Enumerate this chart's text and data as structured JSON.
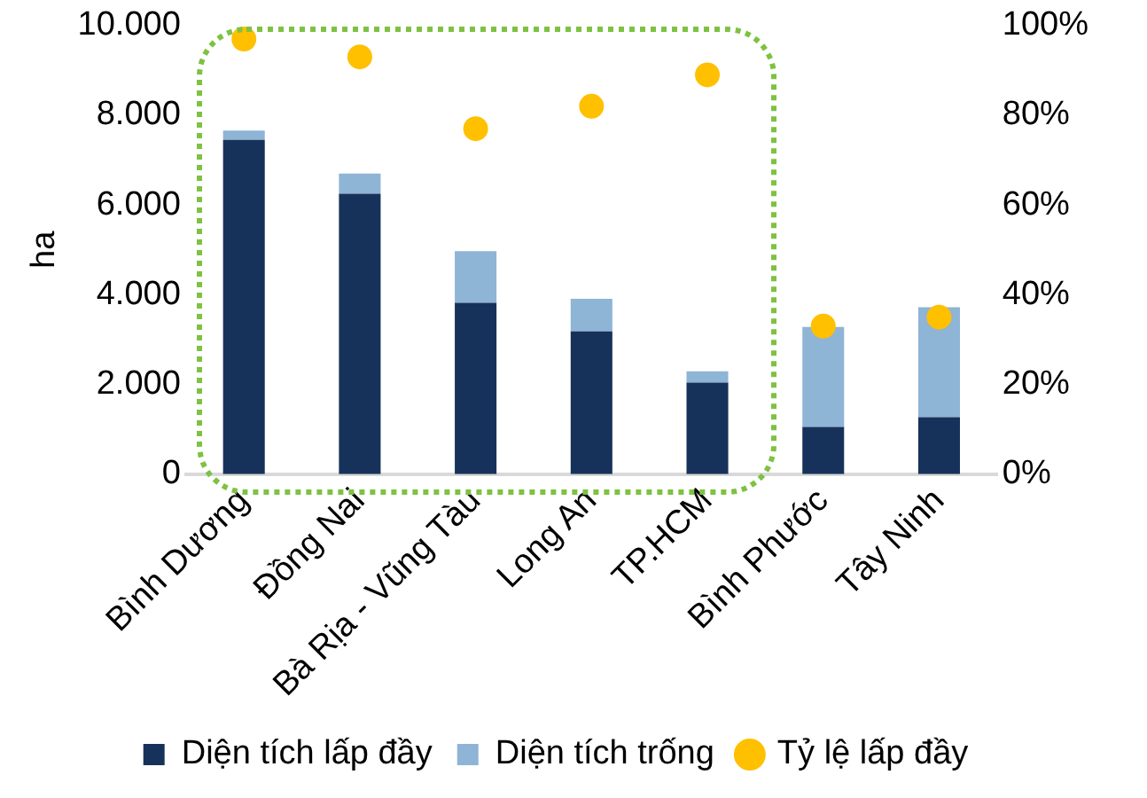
{
  "chart_data": {
    "type": "bar",
    "stacked": true,
    "ylabel": "ha",
    "categories": [
      "Bình Dương",
      "Đồng Nai",
      "Bà Rịa - Vũng Tàu",
      "Long An",
      "TP.HCM",
      "Bình Phước",
      "Tây Ninh"
    ],
    "series": [
      {
        "name": "Diện tích lấp đầy",
        "color": "#17325a",
        "values": [
          7450,
          6250,
          3820,
          3180,
          2040,
          1050,
          1270
        ]
      },
      {
        "name": "Diện tích trống",
        "color": "#8eb4d6",
        "values": [
          210,
          450,
          1150,
          730,
          250,
          2230,
          2450
        ]
      },
      {
        "name": "Tỷ lệ lấp đầy",
        "type": "scatter",
        "axis": "y2",
        "color": "#ffc000",
        "values": [
          97,
          93,
          77,
          82,
          89,
          33,
          35
        ]
      }
    ],
    "ylim": [
      0,
      10000
    ],
    "yticks": [
      {
        "value": 0,
        "label": "0"
      },
      {
        "value": 2000,
        "label": "2.000"
      },
      {
        "value": 4000,
        "label": "4.000"
      },
      {
        "value": 6000,
        "label": "6.000"
      },
      {
        "value": 8000,
        "label": "8.000"
      },
      {
        "value": 10000,
        "label": "10.000"
      }
    ],
    "y2lim": [
      0,
      100
    ],
    "y2ticks": [
      {
        "value": 0,
        "label": "0%"
      },
      {
        "value": 20,
        "label": "20%"
      },
      {
        "value": 40,
        "label": "40%"
      },
      {
        "value": 60,
        "label": "60%"
      },
      {
        "value": 80,
        "label": "80%"
      },
      {
        "value": 100,
        "label": "100%"
      }
    ],
    "grid": false,
    "legend": "bottom",
    "marker": "circle"
  }
}
